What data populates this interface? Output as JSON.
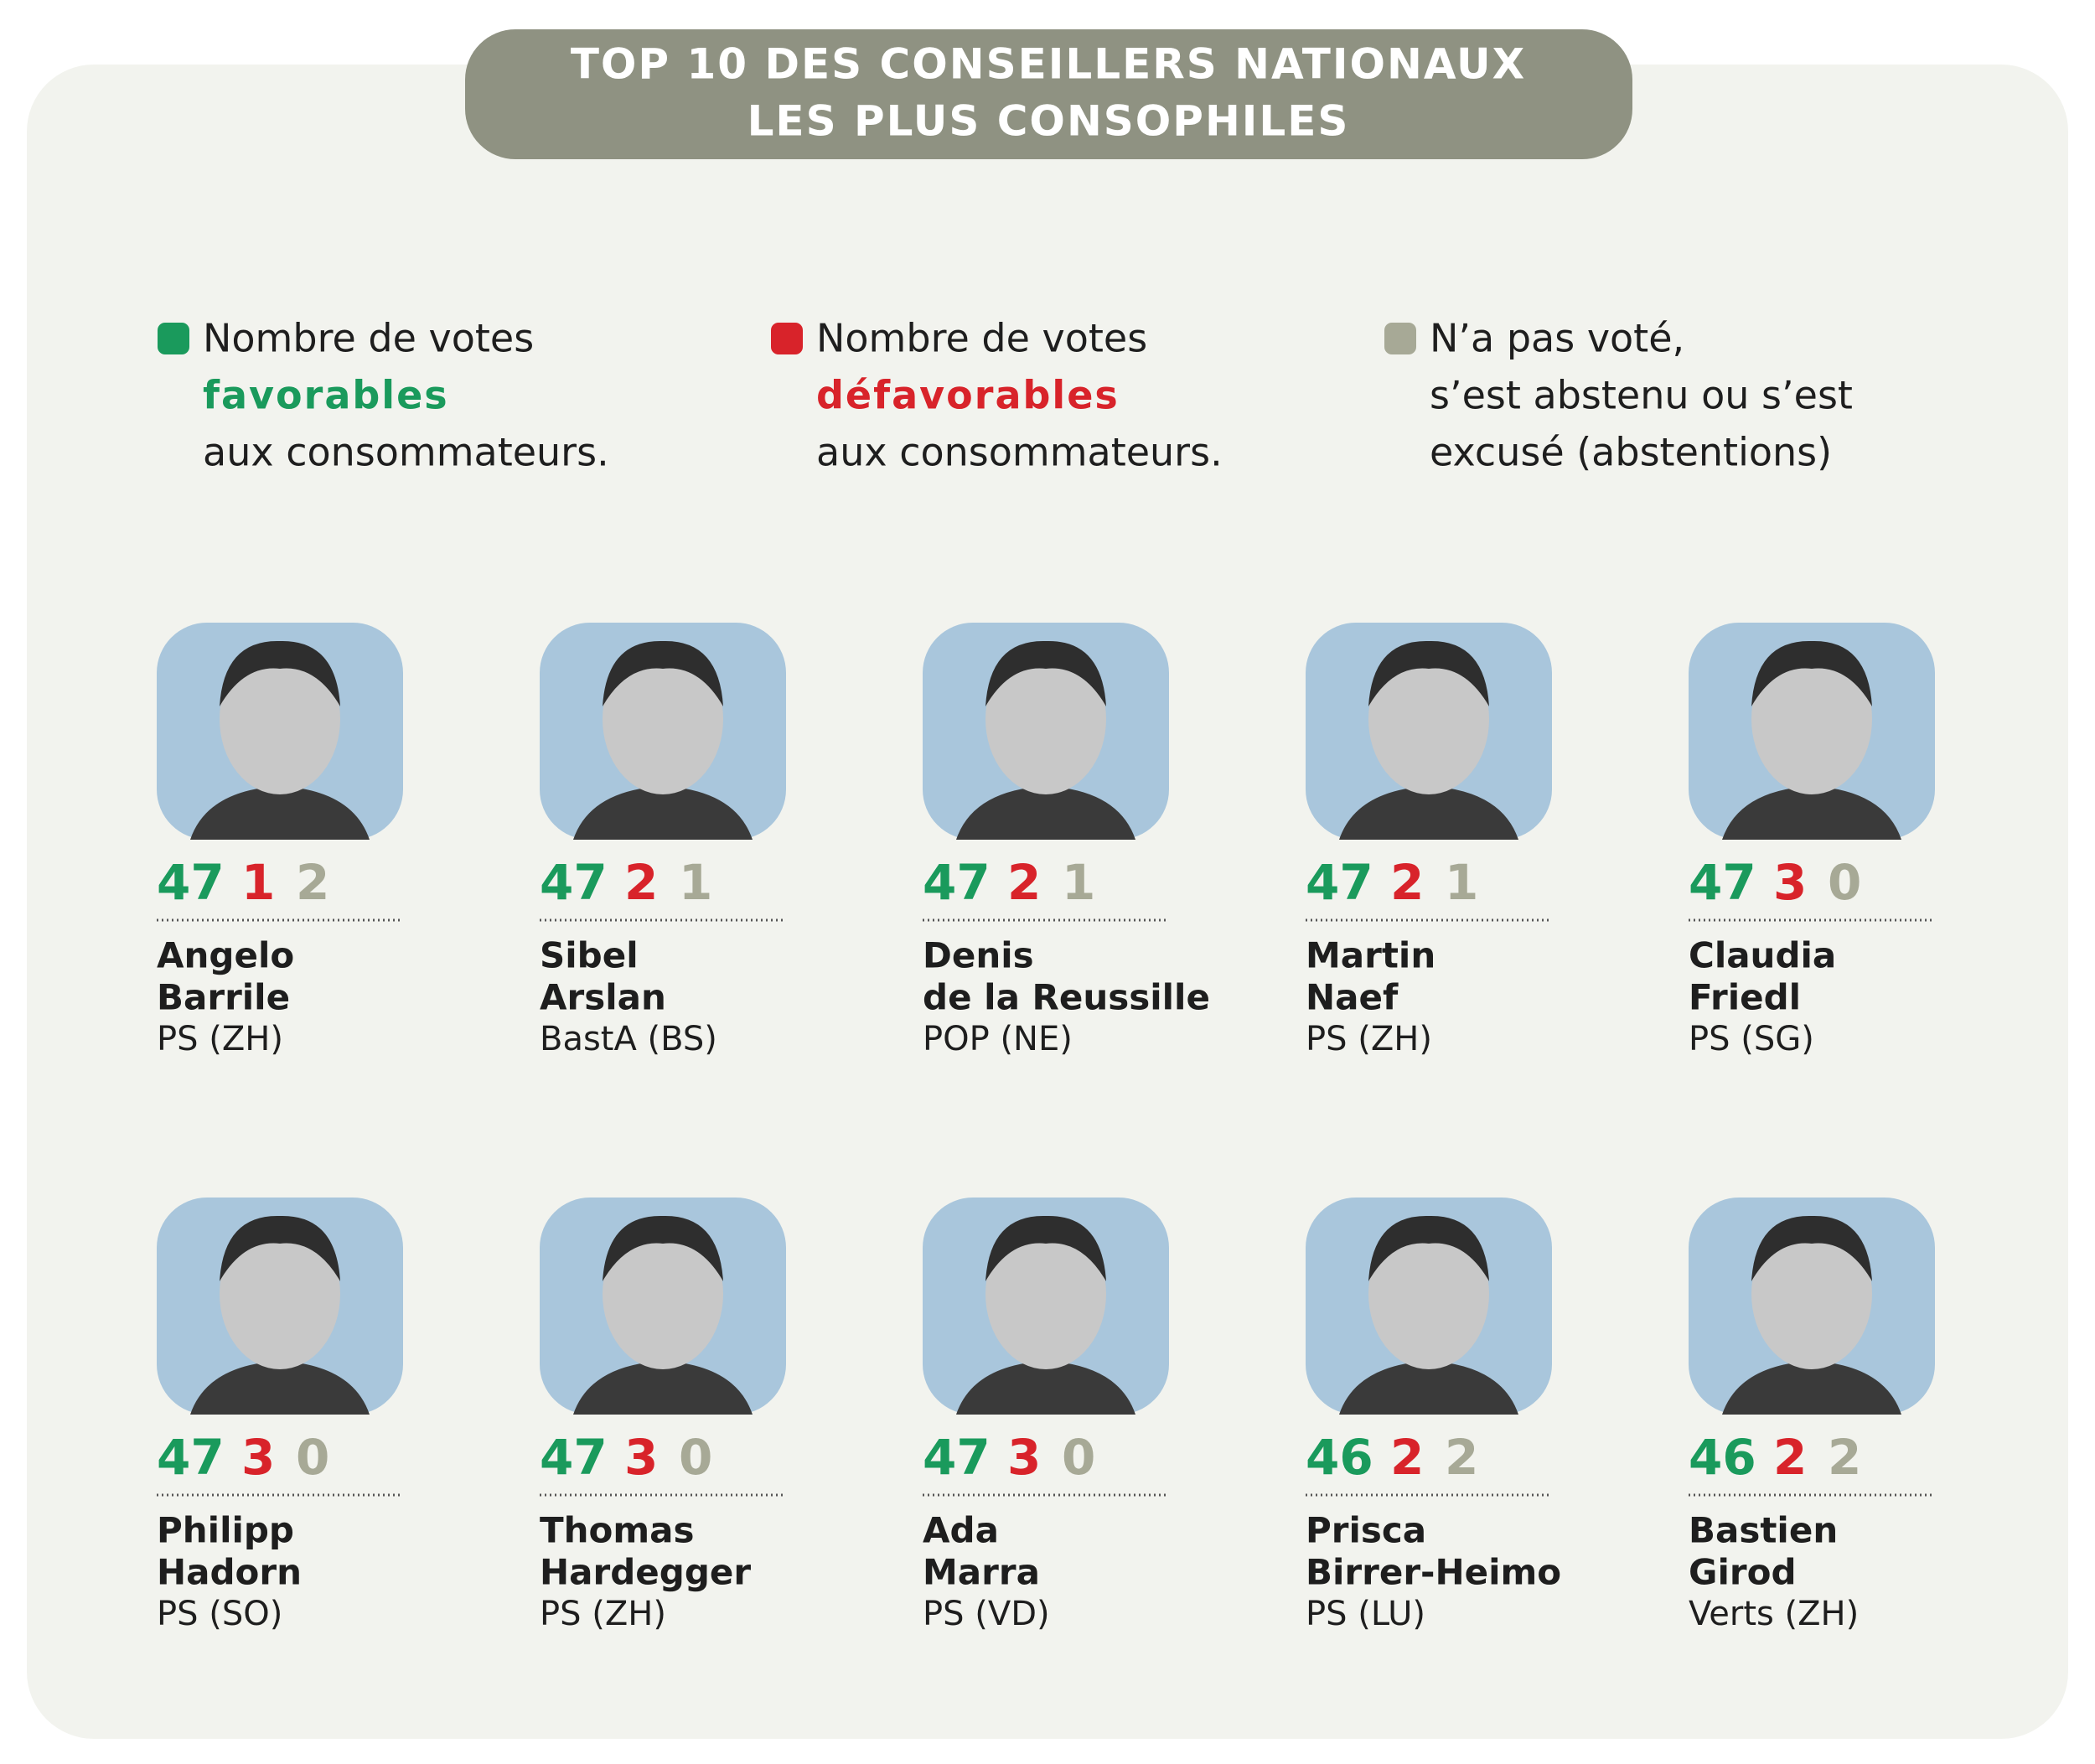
{
  "header": {
    "title": [
      "TOP 10 DES CONSEILLERS NATIONAUX",
      "LES PLUS CONSOPHILES"
    ]
  },
  "legend": [
    {
      "lines": [
        "Nombre de votes",
        "favorables",
        "aux consommateurs."
      ]
    },
    {
      "lines": [
        "Nombre de votes",
        "défavorables",
        "aux consommateurs."
      ]
    },
    {
      "lines": [
        "N’a pas voté,",
        "s’est abstenu ou s’est",
        "excusé (abstentions)"
      ]
    }
  ],
  "people": [
    {
      "first": "Angelo",
      "last": "Barrile",
      "party": "PS (ZH)",
      "favorable": 47,
      "unfavorable": 1,
      "abstentions": 2
    },
    {
      "first": "Sibel",
      "last": "Arslan",
      "party": "BastA (BS)",
      "favorable": 47,
      "unfavorable": 2,
      "abstentions": 1
    },
    {
      "first": "Denis",
      "last": "de la Reussille",
      "party": "POP (NE)",
      "favorable": 47,
      "unfavorable": 2,
      "abstentions": 1
    },
    {
      "first": "Martin",
      "last": "Naef",
      "party": "PS (ZH)",
      "favorable": 47,
      "unfavorable": 2,
      "abstentions": 1
    },
    {
      "first": "Claudia",
      "last": "Friedl",
      "party": "PS (SG)",
      "favorable": 47,
      "unfavorable": 3,
      "abstentions": 0
    },
    {
      "first": "Philipp",
      "last": "Hadorn",
      "party": "PS (SO)",
      "favorable": 47,
      "unfavorable": 3,
      "abstentions": 0
    },
    {
      "first": "Thomas",
      "last": "Hardegger",
      "party": "PS (ZH)",
      "favorable": 47,
      "unfavorable": 3,
      "abstentions": 0
    },
    {
      "first": "Ada",
      "last": "Marra",
      "party": "PS (VD)",
      "favorable": 47,
      "unfavorable": 3,
      "abstentions": 0
    },
    {
      "first": "Prisca",
      "last": "Birrer-Heimo",
      "party": "PS (LU)",
      "favorable": 46,
      "unfavorable": 2,
      "abstentions": 2
    },
    {
      "first": "Bastien",
      "last": "Girod",
      "party": "Verts (ZH)",
      "favorable": 46,
      "unfavorable": 2,
      "abstentions": 2
    }
  ]
}
